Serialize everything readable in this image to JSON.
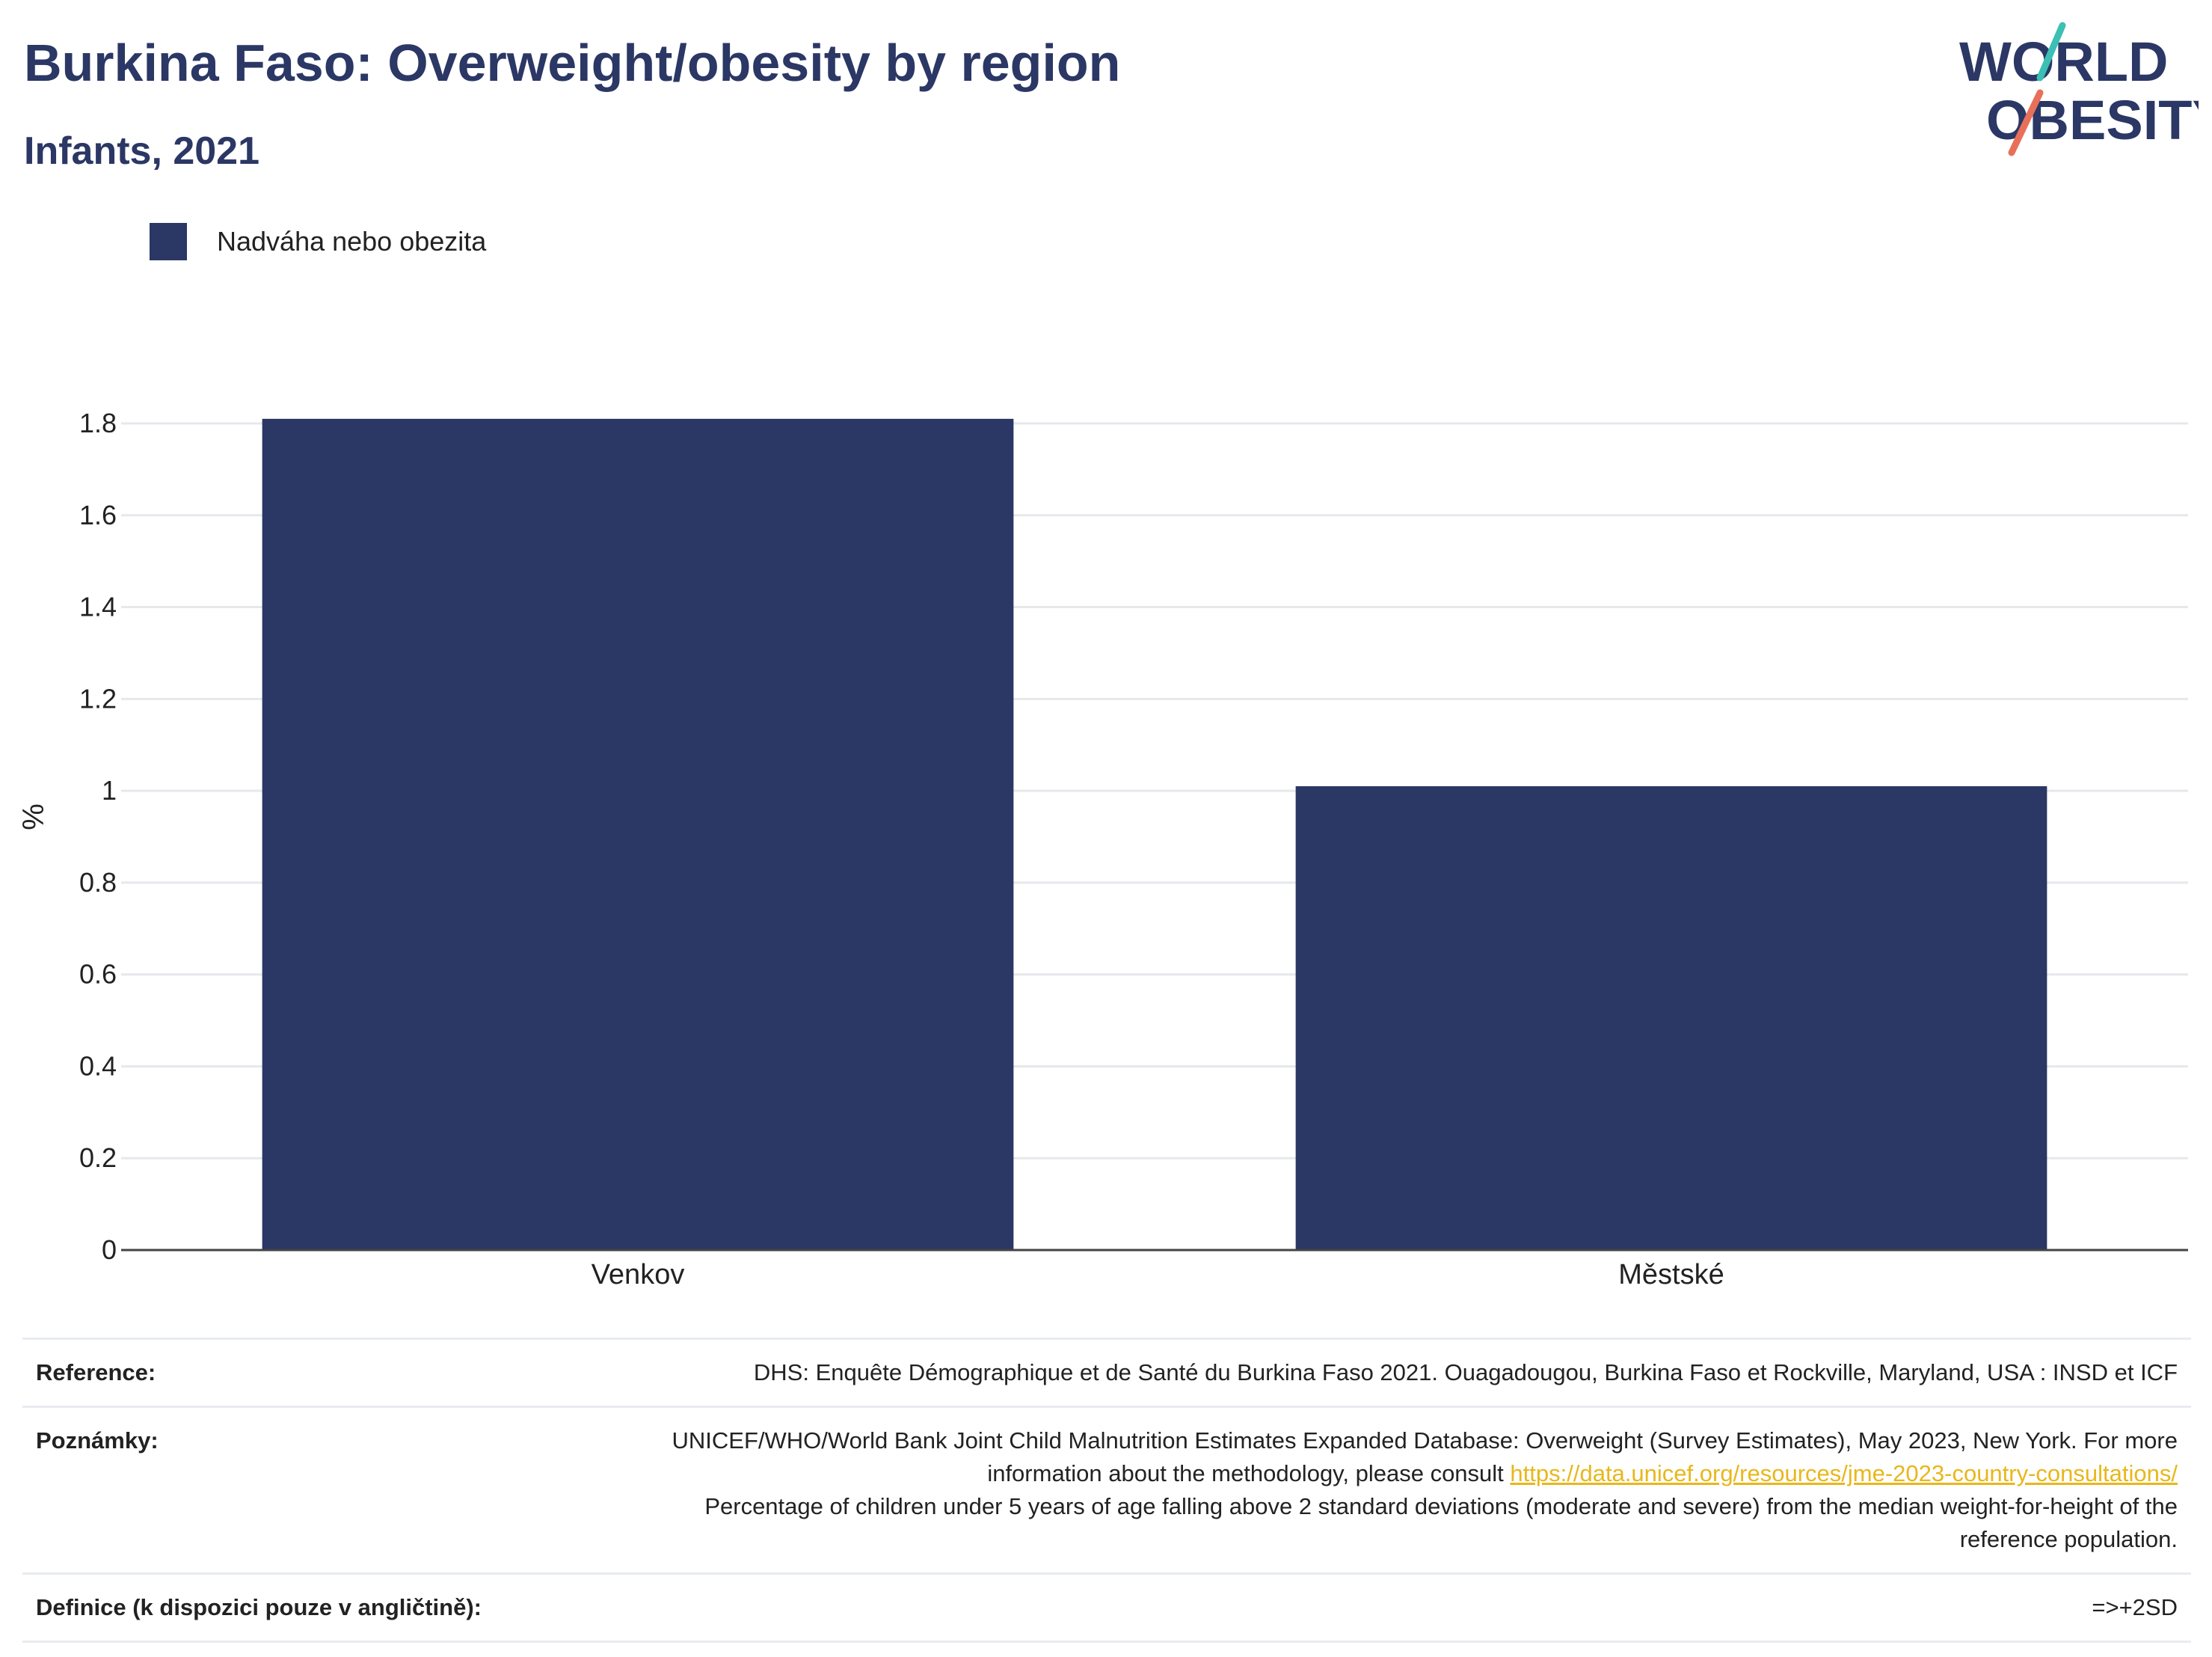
{
  "header": {
    "title": "Burkina Faso: Overweight/obesity by region",
    "subtitle": "Infants, 2021"
  },
  "logo": {
    "line1": "WORLD",
    "line2": "OBESITY",
    "colors": {
      "text": "#2b3764",
      "slash_top": "#3cbfb4",
      "slash_bottom": "#e8705a"
    }
  },
  "legend": {
    "label": "Nadváha nebo obezita",
    "color": "#2b3764"
  },
  "chart_data": {
    "type": "bar",
    "categories": [
      "Venkov",
      "Městské"
    ],
    "series": [
      {
        "name": "Nadváha nebo obezita",
        "values": [
          1.81,
          1.01
        ],
        "color": "#2b3764"
      }
    ],
    "ylabel": "%",
    "xlabel": "",
    "ylim": [
      0,
      1.8
    ],
    "yticks": [
      0,
      0.2,
      0.4,
      0.6,
      0.8,
      1,
      1.2,
      1.4,
      1.6,
      1.8
    ],
    "ytick_labels": [
      "0",
      "0.2",
      "0.4",
      "0.6",
      "0.8",
      "1",
      "1.2",
      "1.4",
      "1.6",
      "1.8"
    ],
    "grid": true,
    "legend_position": "top-left"
  },
  "footer": {
    "reference_label": "Reference:",
    "reference_text": "DHS: Enquête Démographique et de Santé du Burkina Faso 2021. Ouagadougou, Burkina Faso et Rockville, Maryland, USA : INSD et ICF",
    "notes_label": "Poznámky:",
    "notes_text_1": "UNICEF/WHO/World Bank Joint Child Malnutrition Estimates Expanded Database: Overweight (Survey Estimates), May 2023, New York. For more information about the methodology, please consult",
    "notes_link": "https://data.unicef.org/resources/jme-2023-country-consultations/",
    "notes_text_2": "Percentage of children under 5 years of age falling above 2 standard deviations (moderate and severe) from the median weight-for-height of the reference population.",
    "definition_label": "Definice (k dispozici pouze v angličtině):",
    "definition_text": "=>+2SD"
  }
}
